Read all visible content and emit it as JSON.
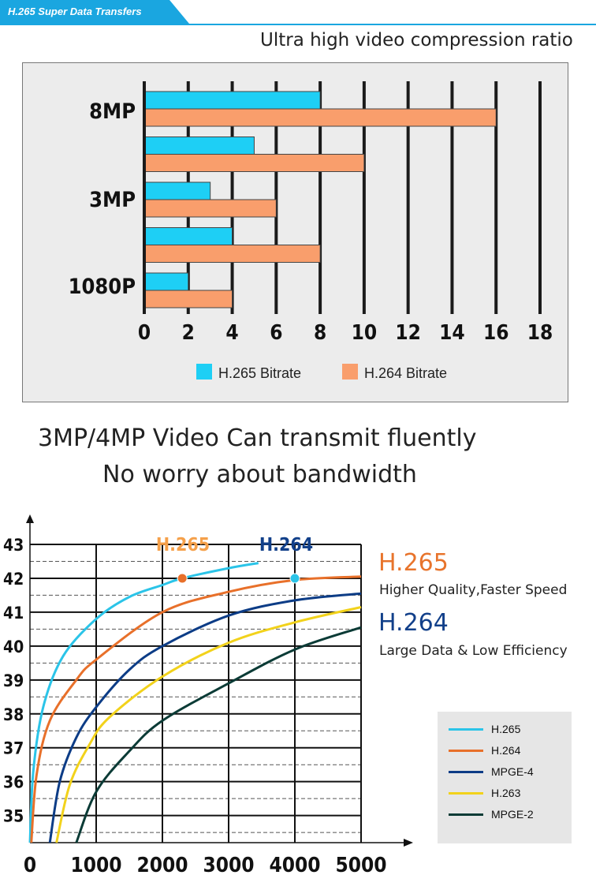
{
  "banner": {
    "title": "H.265 Super Data Transfers",
    "color": "#1aa6e0"
  },
  "top_subtitle": "Ultra high video compression ratio",
  "headline": {
    "line1": "3MP/4MP Video Can transmit fluently",
    "line2": "No worry about bandwidth"
  },
  "colors": {
    "h265_bar": "#1ecff5",
    "h264_bar": "#f99e6c",
    "h265_curve": "#2bc4e8",
    "h264_curve": "#e8702a",
    "mpeg4_curve": "#0c3c86",
    "h263_curve": "#f2d21b",
    "mpeg2_curve": "#0b3b36",
    "h265_text": "#e8742c",
    "h264_text": "#12408a"
  },
  "side_labels": {
    "h265_title": "H.265",
    "h265_desc": "Higher Quality,Faster Speed",
    "h264_title": "H.264",
    "h264_desc": "Large Data & Low Efficiency"
  },
  "chart_data": [
    {
      "type": "bar",
      "orientation": "horizontal",
      "title": "",
      "categories_labeled": [
        "8MP",
        "3MP",
        "1080P"
      ],
      "groups": [
        "8MP",
        "",
        "3MP",
        "",
        "1080P"
      ],
      "series": [
        {
          "name": "H.265 Bitrate",
          "values": [
            8,
            5,
            3,
            4,
            2
          ]
        },
        {
          "name": "H.264 Bitrate",
          "values": [
            16,
            10,
            6,
            8,
            4
          ]
        }
      ],
      "xticks": [
        "0",
        "2",
        "4",
        "6",
        "8",
        "10",
        "12",
        "14",
        "16",
        "18"
      ],
      "xlim": [
        0,
        18
      ],
      "grid": "vertical",
      "legend": "bottom"
    },
    {
      "type": "line",
      "title": "",
      "xticks": [
        "0",
        "1000",
        "2000",
        "3000",
        "4000",
        "5000"
      ],
      "yticks": [
        "35",
        "36",
        "37",
        "38",
        "39",
        "40",
        "41",
        "42",
        "43"
      ],
      "xlim": [
        0,
        5000
      ],
      "ylim": [
        34.2,
        43
      ],
      "grid": true,
      "legend": "bottom-right",
      "series": [
        {
          "name": "H.265",
          "points": [
            [
              0,
              34.2
            ],
            [
              50,
              36.3
            ],
            [
              200,
              38.2
            ],
            [
              500,
              39.7
            ],
            [
              1000,
              40.8
            ],
            [
              1500,
              41.45
            ],
            [
              2000,
              41.8
            ],
            [
              2300,
              42.0
            ],
            [
              3000,
              42.3
            ],
            [
              3450,
              42.45
            ]
          ]
        },
        {
          "name": "H.264",
          "points": [
            [
              20,
              34.2
            ],
            [
              100,
              36.2
            ],
            [
              300,
              37.8
            ],
            [
              700,
              39.0
            ],
            [
              1000,
              39.6
            ],
            [
              2000,
              41.0
            ],
            [
              3000,
              41.6
            ],
            [
              4000,
              41.95
            ],
            [
              5000,
              42.05
            ]
          ]
        },
        {
          "name": "MPGE-4",
          "points": [
            [
              300,
              34.2
            ],
            [
              450,
              36.0
            ],
            [
              700,
              37.3
            ],
            [
              1000,
              38.2
            ],
            [
              1500,
              39.3
            ],
            [
              2000,
              40.0
            ],
            [
              3000,
              40.9
            ],
            [
              4000,
              41.35
            ],
            [
              5000,
              41.55
            ]
          ]
        },
        {
          "name": "H.263",
          "points": [
            [
              400,
              34.2
            ],
            [
              600,
              35.9
            ],
            [
              900,
              37.1
            ],
            [
              1200,
              37.9
            ],
            [
              2000,
              39.1
            ],
            [
              3000,
              40.1
            ],
            [
              4000,
              40.7
            ],
            [
              5000,
              41.15
            ]
          ]
        },
        {
          "name": "MPGE-2",
          "points": [
            [
              700,
              34.2
            ],
            [
              1000,
              35.7
            ],
            [
              1500,
              36.9
            ],
            [
              2000,
              37.8
            ],
            [
              3000,
              38.9
            ],
            [
              4000,
              39.9
            ],
            [
              5000,
              40.55
            ]
          ]
        }
      ],
      "annotations": [
        {
          "label": "H.265",
          "x": 2300,
          "y": 42.0
        },
        {
          "label": "H.264",
          "x": 4000,
          "y": 42.0
        }
      ]
    }
  ]
}
